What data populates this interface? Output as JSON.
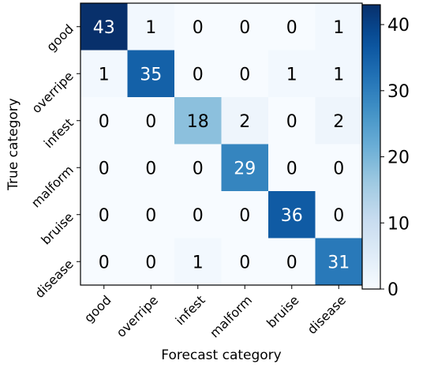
{
  "chart_data": {
    "type": "heatmap",
    "xlabel": "Forecast category",
    "ylabel": "True category",
    "x_categories": [
      "good",
      "overripe",
      "infest",
      "malform",
      "bruise",
      "disease"
    ],
    "y_categories": [
      "good",
      "overripe",
      "infest",
      "malform",
      "bruise",
      "disease"
    ],
    "values": [
      [
        43,
        1,
        0,
        0,
        0,
        1
      ],
      [
        1,
        35,
        0,
        0,
        1,
        1
      ],
      [
        0,
        0,
        18,
        2,
        0,
        2
      ],
      [
        0,
        0,
        0,
        29,
        0,
        0
      ],
      [
        0,
        0,
        0,
        0,
        36,
        0
      ],
      [
        0,
        0,
        1,
        0,
        0,
        31
      ]
    ],
    "colorbar": {
      "min": 0,
      "max": 43,
      "ticks": [
        0,
        10,
        20,
        30,
        40
      ],
      "colormap": "Blues"
    }
  }
}
